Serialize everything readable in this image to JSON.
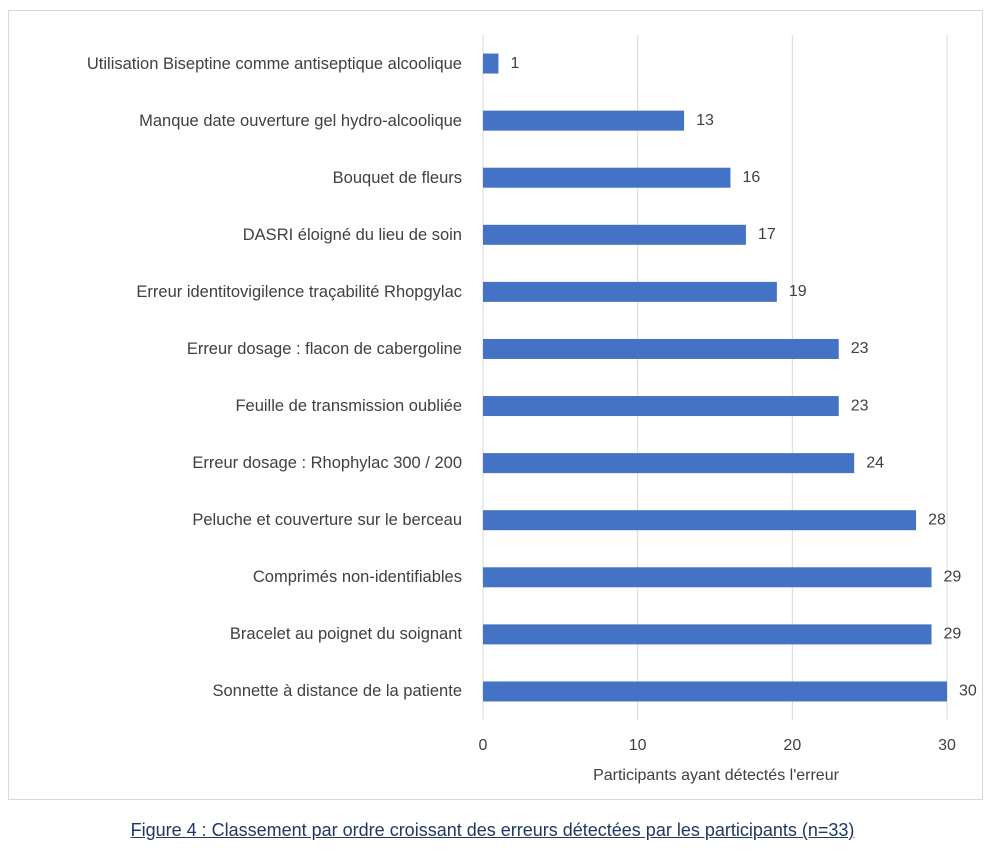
{
  "chart_data": {
    "type": "barh",
    "categories": [
      "Utilisation Biseptine comme antiseptique alcoolique",
      "Manque date ouverture gel hydro-alcoolique",
      "Bouquet de fleurs",
      "DASRI éloigné du lieu de soin",
      "Erreur identitovigilence traçabilité Rhopgylac",
      "Erreur dosage : flacon de cabergoline",
      "Feuille de transmission oubliée",
      "Erreur dosage : Rhophylac 300 / 200",
      "Peluche et couverture sur le berceau",
      "Comprimés non-identifiables",
      "Bracelet au poignet du soignant",
      "Sonnette à distance de la patiente"
    ],
    "values": [
      1,
      13,
      16,
      17,
      19,
      23,
      23,
      24,
      28,
      29,
      29,
      30
    ],
    "color": "#4472c4",
    "xlabel": "Participants ayant détectés l'erreur",
    "xlim": [
      0,
      30
    ],
    "xticks": [
      0,
      10,
      20,
      30
    ],
    "grid": true,
    "caption": "Figure 4 : Classement par ordre croissant des erreurs détectées par les participants (n=33)"
  }
}
